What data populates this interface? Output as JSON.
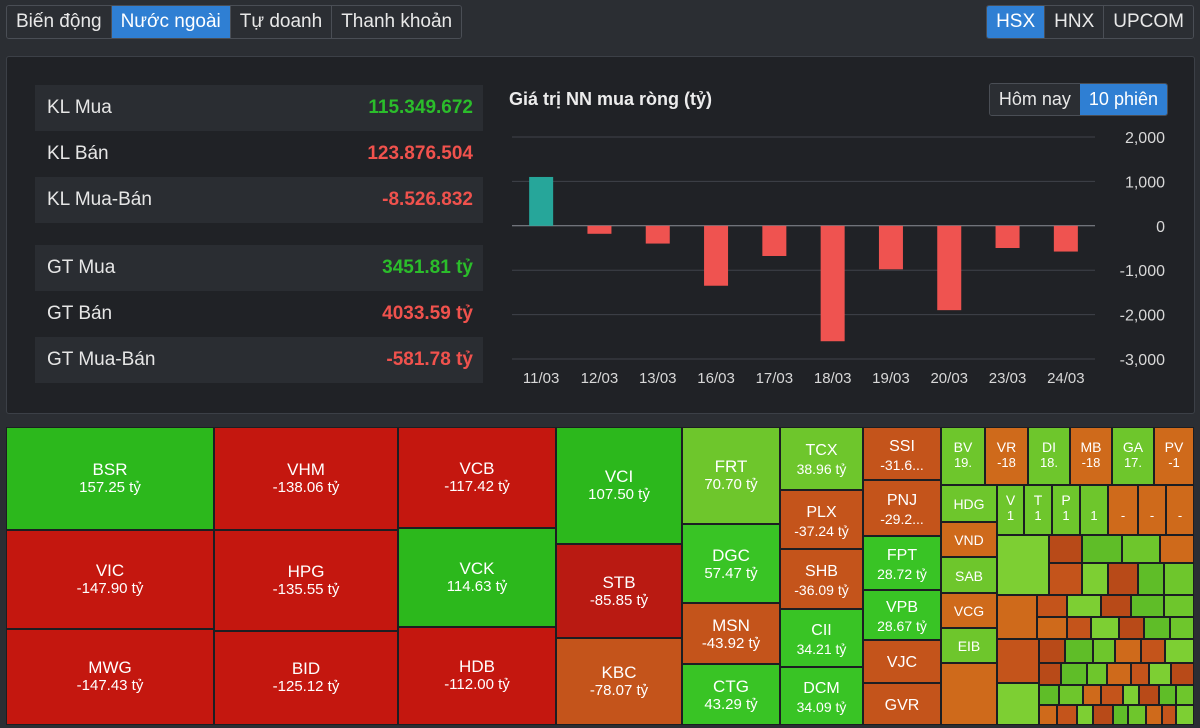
{
  "tabs": [
    "Biến động",
    "Nước ngoài",
    "Tự doanh",
    "Thanh khoản"
  ],
  "exchanges": [
    "HSX",
    "HNX",
    "UPCOM"
  ],
  "stats": {
    "kl_mua": {
      "label": "KL Mua",
      "value": "115.349.672"
    },
    "kl_ban": {
      "label": "KL Bán",
      "value": "123.876.504"
    },
    "kl_net": {
      "label": "KL Mua-Bán",
      "value": "-8.526.832"
    },
    "gt_mua": {
      "label": "GT Mua",
      "value": "3451.81 tỷ"
    },
    "gt_ban": {
      "label": "GT Bán",
      "value": "4033.59 tỷ"
    },
    "gt_net": {
      "label": "GT Mua-Bán",
      "value": "-581.78 tỷ"
    }
  },
  "period": {
    "today": "Hôm nay",
    "ten": "10 phiên"
  },
  "colors": {
    "positive": "#26a69a",
    "negative": "#ef5350",
    "accent": "#2f7fd3"
  },
  "chart_data": {
    "type": "bar",
    "title": "Giá trị NN mua ròng (tỷ)",
    "categories": [
      "11/03",
      "12/03",
      "13/03",
      "16/03",
      "17/03",
      "18/03",
      "19/03",
      "20/03",
      "23/03",
      "24/03"
    ],
    "values": [
      1100,
      -180,
      -400,
      -1350,
      -680,
      -2600,
      -980,
      -1900,
      -500,
      -580
    ],
    "ylim": [
      -3000,
      2000
    ],
    "yticks": [
      2000,
      1000,
      0,
      -1000,
      -2000,
      -3000
    ],
    "ytick_labels": [
      "2,000",
      "1,000",
      "0",
      "-1,000",
      "-2,000",
      "-3,000"
    ],
    "grid": true
  },
  "treemap": {
    "c_bsr": {
      "ticker": "BSR",
      "value": "157.25 tỷ"
    },
    "c_vic": {
      "ticker": "VIC",
      "value": "-147.90 tỷ"
    },
    "c_mwg": {
      "ticker": "MWG",
      "value": "-147.43 tỷ"
    },
    "c_vhm": {
      "ticker": "VHM",
      "value": "-138.06 tỷ"
    },
    "c_hpg": {
      "ticker": "HPG",
      "value": "-135.55 tỷ"
    },
    "c_bid": {
      "ticker": "BID",
      "value": "-125.12 tỷ"
    },
    "c_vcb": {
      "ticker": "VCB",
      "value": "-117.42 tỷ"
    },
    "c_vck": {
      "ticker": "VCK",
      "value": "114.63 tỷ"
    },
    "c_hdb": {
      "ticker": "HDB",
      "value": "-112.00 tỷ"
    },
    "c_vci": {
      "ticker": "VCI",
      "value": "107.50 tỷ"
    },
    "c_stb": {
      "ticker": "STB",
      "value": "-85.85 tỷ"
    },
    "c_kbc": {
      "ticker": "KBC",
      "value": "-78.07 tỷ"
    },
    "c_frt": {
      "ticker": "FRT",
      "value": "70.70 tỷ"
    },
    "c_dgc": {
      "ticker": "DGC",
      "value": "57.47 tỷ"
    },
    "c_msn": {
      "ticker": "MSN",
      "value": "-43.92 tỷ"
    },
    "c_ctg": {
      "ticker": "CTG",
      "value": "43.29 tỷ"
    },
    "c_tcx": {
      "ticker": "TCX",
      "value": "38.96 tỷ"
    },
    "c_plx": {
      "ticker": "PLX",
      "value": "-37.24 tỷ"
    },
    "c_shb": {
      "ticker": "SHB",
      "value": "-36.09 tỷ"
    },
    "c_cii": {
      "ticker": "CII",
      "value": "34.21 tỷ"
    },
    "c_dcm": {
      "ticker": "DCM",
      "value": "34.09 tỷ"
    },
    "c_ssi": {
      "ticker": "SSI",
      "value": "-31.6..."
    },
    "c_pnj": {
      "ticker": "PNJ",
      "value": "-29.2..."
    },
    "c_fpt": {
      "ticker": "FPT",
      "value": "28.72 tỷ"
    },
    "c_vpb": {
      "ticker": "VPB",
      "value": "28.67 tỷ"
    },
    "c_vjc": {
      "ticker": "VJC",
      "value": ""
    },
    "c_gvr": {
      "ticker": "GVR",
      "value": ""
    },
    "c_bv": {
      "ticker": "BV",
      "value": "19."
    },
    "c_vr": {
      "ticker": "VR",
      "value": "-18"
    },
    "c_di": {
      "ticker": "DI",
      "value": "18."
    },
    "c_mb": {
      "ticker": "MB",
      "value": "-18"
    },
    "c_ga": {
      "ticker": "GA",
      "value": "17."
    },
    "c_pv": {
      "ticker": "PV",
      "value": "-1"
    },
    "c_hdg": {
      "ticker": "HDG",
      "value": ""
    },
    "c_vnd": {
      "ticker": "VND",
      "value": ""
    },
    "c_sab": {
      "ticker": "SAB",
      "value": ""
    },
    "c_vcg": {
      "ticker": "VCG",
      "value": ""
    },
    "c_eib": {
      "ticker": "EIB",
      "value": ""
    },
    "c_v": {
      "ticker": "V",
      "value": "1"
    },
    "c_t": {
      "ticker": "T",
      "value": "1"
    },
    "c_p": {
      "ticker": "P",
      "value": "1"
    },
    "c_u1": {
      "ticker": "",
      "value": "1"
    },
    "c_u2": {
      "ticker": "",
      "value": "-"
    },
    "c_u3": {
      "ticker": "",
      "value": "-"
    },
    "c_u4": {
      "ticker": "",
      "value": "-"
    }
  }
}
